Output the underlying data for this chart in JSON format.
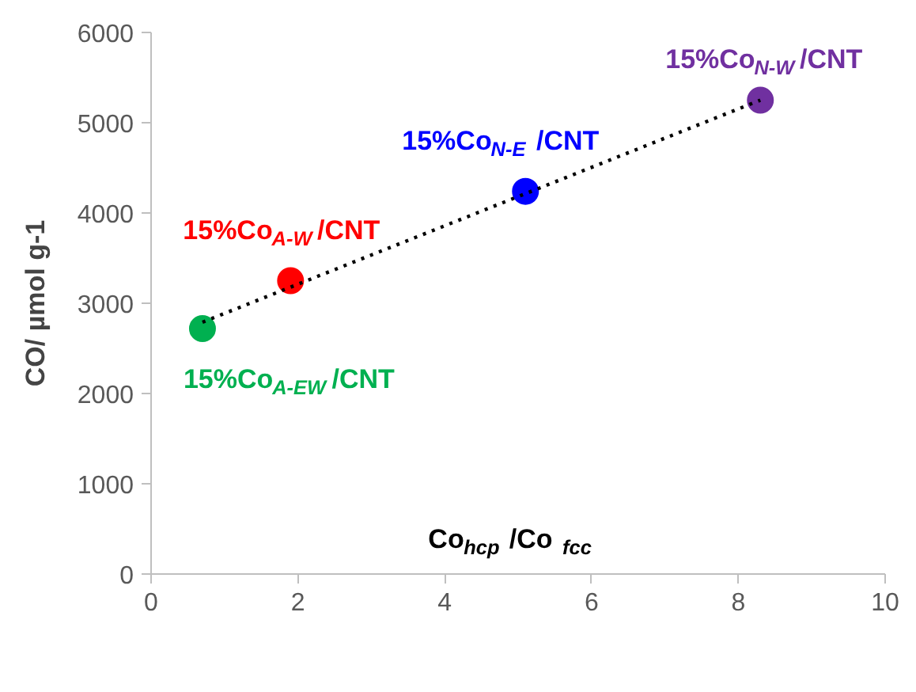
{
  "chart_data": {
    "type": "scatter",
    "xlabel": "Co$_{hcp}$/Co$_{fcc}$",
    "ylabel": "CO/ µmol g-1",
    "xlim": [
      0,
      10
    ],
    "xticks": [
      0,
      2,
      4,
      6,
      8,
      10
    ],
    "ylim": [
      0,
      6000
    ],
    "yticks": [
      0,
      1000,
      2000,
      3000,
      4000,
      5000,
      6000
    ],
    "grid": false,
    "series": [
      {
        "name": "15%Co$_{A-EW}$/CNT",
        "color": "#00b050",
        "marker": "circle",
        "x": [
          0.7
        ],
        "values": [
          2720
        ]
      },
      {
        "name": "15%Co$_{A-W}$/CNT",
        "color": "#ff0000",
        "marker": "circle",
        "x": [
          1.9
        ],
        "values": [
          3250
        ]
      },
      {
        "name": "15%Co$_{N-E}$/CNT",
        "color": "#0000ff",
        "marker": "circle",
        "x": [
          5.1
        ],
        "values": [
          4240
        ]
      },
      {
        "name": "15%Co$_{N-W}$/CNT",
        "color": "#7030a0",
        "marker": "circle",
        "x": [
          8.3
        ],
        "values": [
          5250
        ]
      },
      {
        "type": "line",
        "color": "#000000",
        "line_style": "dotted",
        "x": [
          0.7,
          8.3
        ],
        "values": [
          2790,
          5250
        ]
      }
    ]
  }
}
